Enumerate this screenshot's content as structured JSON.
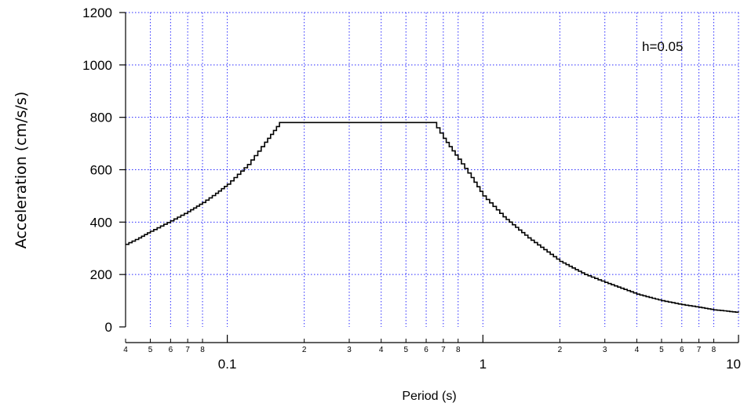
{
  "chart_data": {
    "type": "line",
    "xscale": "log",
    "xlim": [
      0.04,
      10
    ],
    "ylim": [
      0,
      1200
    ],
    "xlabel": "Period (s)",
    "ylabel": "Acceleration (cm/s/s)",
    "grid": true,
    "yticks": [
      "0",
      "200",
      "400",
      "600",
      "800",
      "1000",
      "1200"
    ],
    "xticks_major": [
      "0.1",
      "1",
      "10"
    ],
    "xticks_minor": [
      {
        "x": 0.04,
        "label": "4"
      },
      {
        "x": 0.05,
        "label": "5"
      },
      {
        "x": 0.06,
        "label": "6"
      },
      {
        "x": 0.07,
        "label": "7"
      },
      {
        "x": 0.08,
        "label": "8"
      },
      {
        "x": 0.2,
        "label": "2"
      },
      {
        "x": 0.3,
        "label": "3"
      },
      {
        "x": 0.4,
        "label": "4"
      },
      {
        "x": 0.5,
        "label": "5"
      },
      {
        "x": 0.6,
        "label": "6"
      },
      {
        "x": 0.7,
        "label": "7"
      },
      {
        "x": 0.8,
        "label": "8"
      },
      {
        "x": 2,
        "label": "2"
      },
      {
        "x": 3,
        "label": "3"
      },
      {
        "x": 4,
        "label": "4"
      },
      {
        "x": 5,
        "label": "5"
      },
      {
        "x": 6,
        "label": "6"
      },
      {
        "x": 7,
        "label": "7"
      },
      {
        "x": 8,
        "label": "8"
      }
    ],
    "annotation": "h=0.05",
    "series": [
      {
        "color": "#000000",
        "x": [
          0.04,
          0.045,
          0.05,
          0.06,
          0.07,
          0.08,
          0.09,
          0.1,
          0.12,
          0.14,
          0.16,
          0.64,
          0.7,
          0.8,
          0.9,
          1,
          1.2,
          1.5,
          2,
          2.5,
          3,
          4,
          5,
          6,
          7,
          8,
          9,
          10
        ],
        "y": [
          315,
          340,
          365,
          405,
          440,
          475,
          510,
          545,
          620,
          705,
          780,
          780,
          720,
          640,
          570,
          500,
          420,
          340,
          250,
          200,
          170,
          125,
          100,
          85,
          75,
          65,
          60,
          55
        ]
      }
    ]
  }
}
